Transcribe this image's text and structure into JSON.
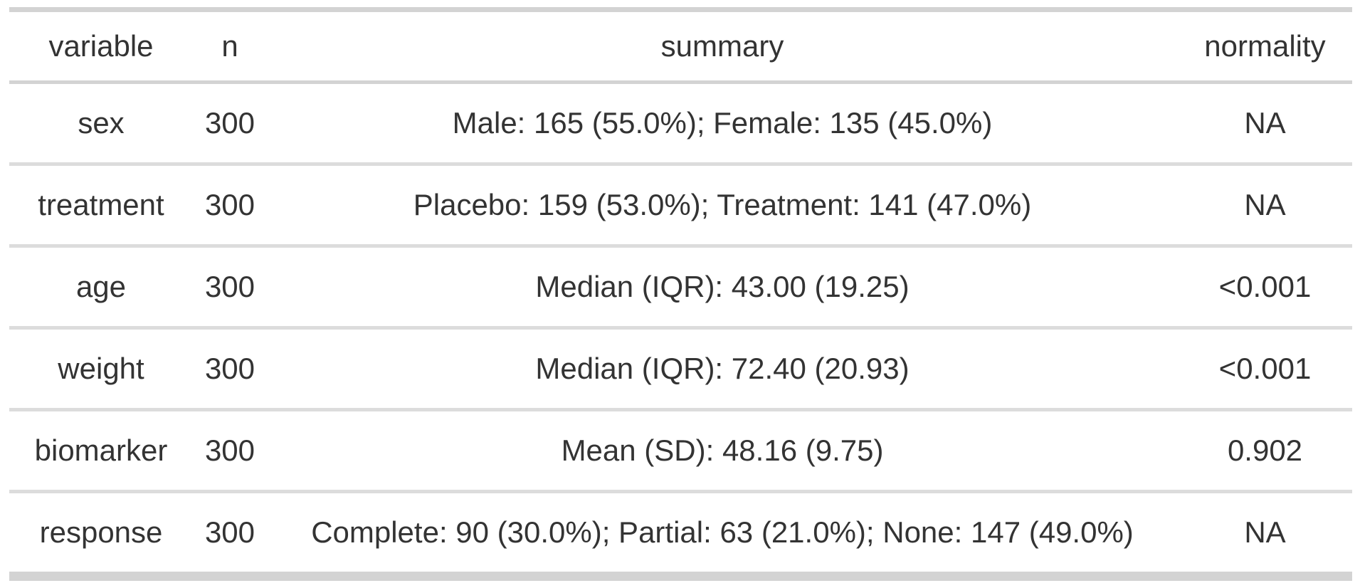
{
  "chart_data": {
    "type": "table",
    "columns": [
      "variable",
      "n",
      "summary",
      "normality"
    ],
    "rows": [
      {
        "variable": "sex",
        "n": "300",
        "summary": "Male: 165 (55.0%); Female: 135 (45.0%)",
        "normality": "NA"
      },
      {
        "variable": "treatment",
        "n": "300",
        "summary": "Placebo: 159 (53.0%); Treatment: 141 (47.0%)",
        "normality": "NA"
      },
      {
        "variable": "age",
        "n": "300",
        "summary": "Median (IQR): 43.00 (19.25)",
        "normality": "<0.001"
      },
      {
        "variable": "weight",
        "n": "300",
        "summary": "Median (IQR): 72.40 (20.93)",
        "normality": "<0.001"
      },
      {
        "variable": "biomarker",
        "n": "300",
        "summary": "Mean (SD): 48.16 (9.75)",
        "normality": "0.902"
      },
      {
        "variable": "response",
        "n": "300",
        "summary": "Complete: 90 (30.0%); Partial: 63 (21.0%); None: 147 (49.0%)",
        "normality": "NA"
      }
    ],
    "layout": {
      "alignment": "center",
      "grid": "horizontal-rules-only"
    },
    "colors": {
      "text": "#333333",
      "border_heavy": "#d3d3d3",
      "border_light": "#dcdcdc",
      "background": "#ffffff"
    }
  }
}
